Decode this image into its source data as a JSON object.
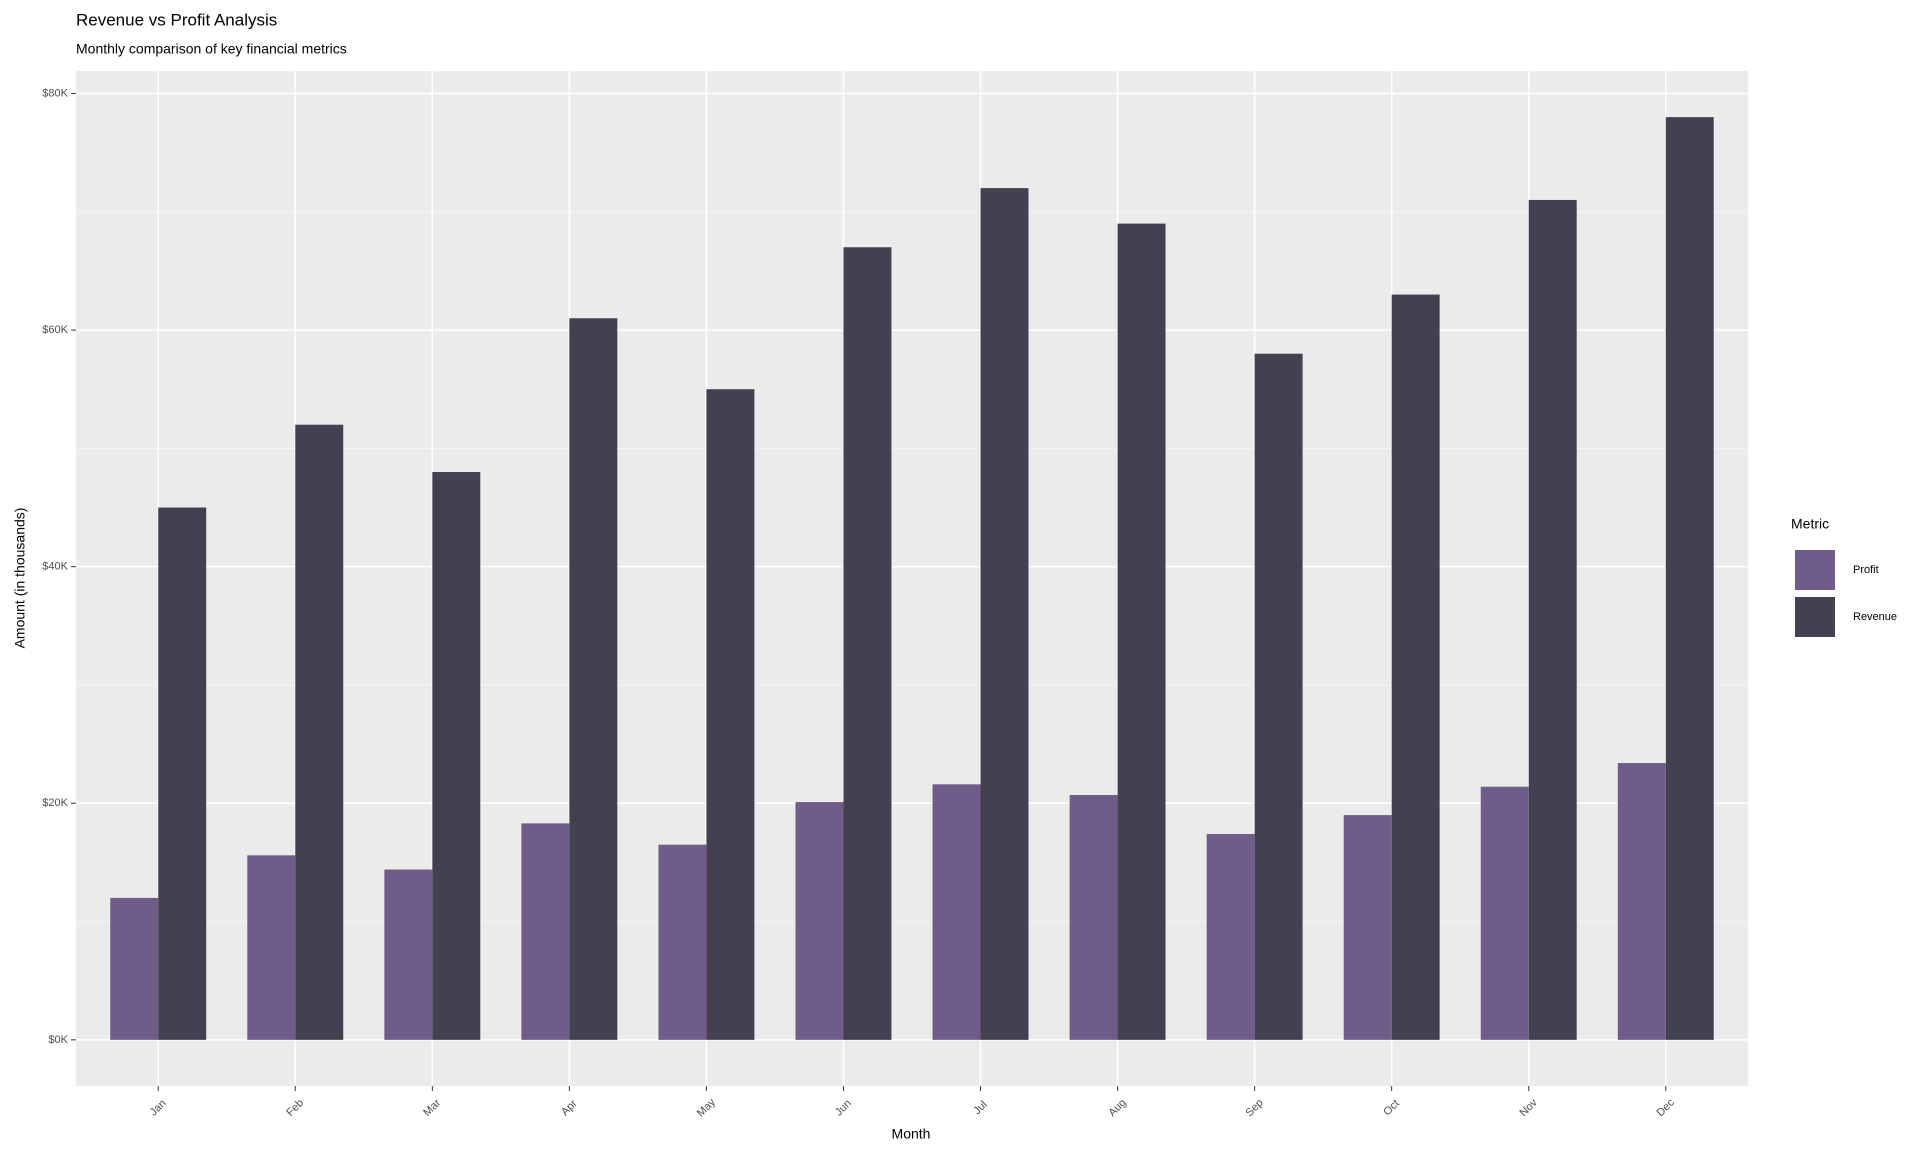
{
  "chart_data": {
    "type": "bar",
    "title": "Revenue vs Profit Analysis",
    "subtitle": "Monthly comparison of key financial metrics",
    "x_label": "Month",
    "y_label": "Amount (in thousands)",
    "legend_title": "Metric",
    "legend_position": "right",
    "grid": true,
    "categories": [
      "Jan",
      "Feb",
      "Mar",
      "Apr",
      "May",
      "Jun",
      "Jul",
      "Aug",
      "Sep",
      "Oct",
      "Nov",
      "Dec"
    ],
    "series": [
      {
        "name": "Profit",
        "color": "#6f5d89",
        "values": [
          12.0,
          15.6,
          14.4,
          18.3,
          16.5,
          20.1,
          21.6,
          20.7,
          17.4,
          19.0,
          21.4,
          23.4
        ]
      },
      {
        "name": "Revenue",
        "color": "#43414f",
        "values": [
          45,
          52,
          48,
          61,
          55,
          67,
          72,
          69,
          58,
          63,
          71,
          78
        ]
      }
    ],
    "ylim": [
      -3.9,
      81.9
    ],
    "yticks": [
      {
        "value": 0,
        "label": "$0K"
      },
      {
        "value": 20,
        "label": "$20K"
      },
      {
        "value": 40,
        "label": "$40K"
      },
      {
        "value": 60,
        "label": "$60K"
      },
      {
        "value": 80,
        "label": "$80K"
      }
    ],
    "minor_yticks": [
      10,
      30,
      50,
      70
    ]
  }
}
